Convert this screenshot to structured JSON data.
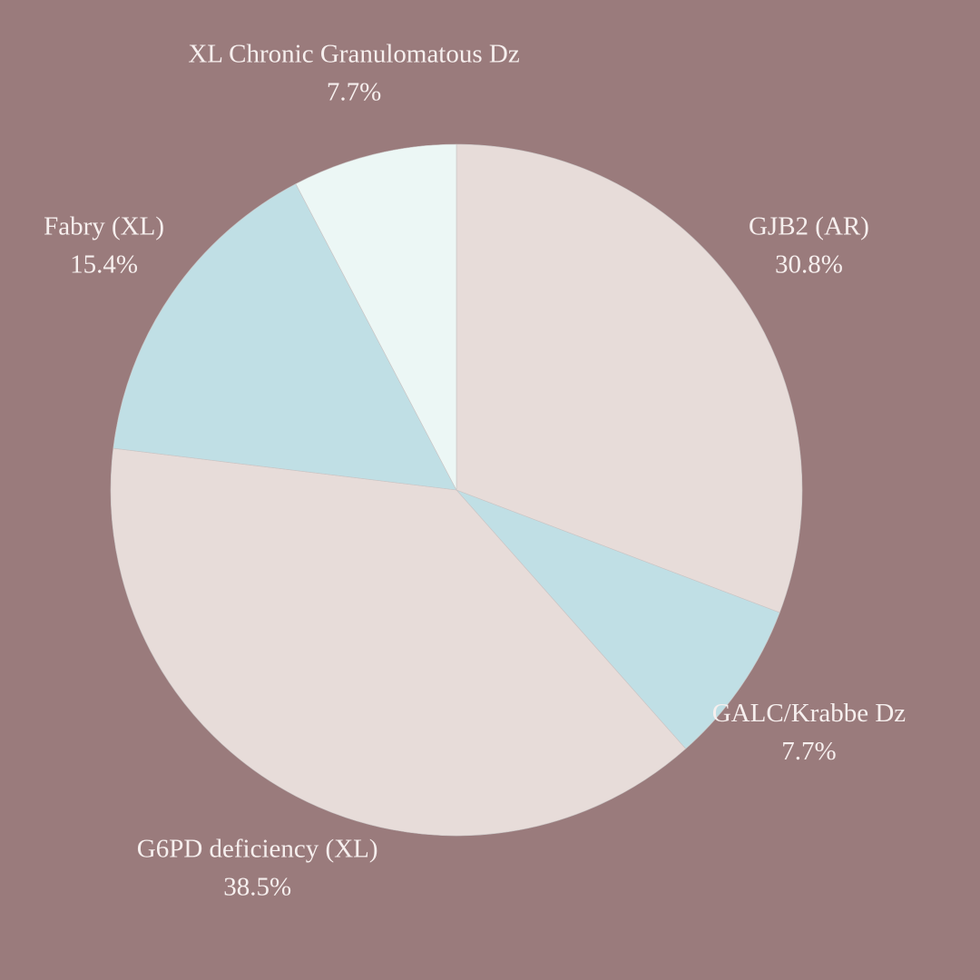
{
  "chart_data": {
    "type": "pie",
    "categories": [
      "GJB2 (AR)",
      "GALC/Krabbe Dz",
      "G6PD deficiency (XL)",
      "Fabry (XL)",
      "XL Chronic Granulomatous Dz"
    ],
    "values": [
      30.8,
      7.7,
      38.5,
      15.4,
      7.7
    ],
    "value_labels": [
      "30.8%",
      "7.7%",
      "38.5%",
      "15.4%",
      "7.7%"
    ],
    "colors": [
      "#e7dcd9",
      "#c0dfe5",
      "#e7dcd9",
      "#c0dfe5",
      "#ecf7f5"
    ]
  }
}
